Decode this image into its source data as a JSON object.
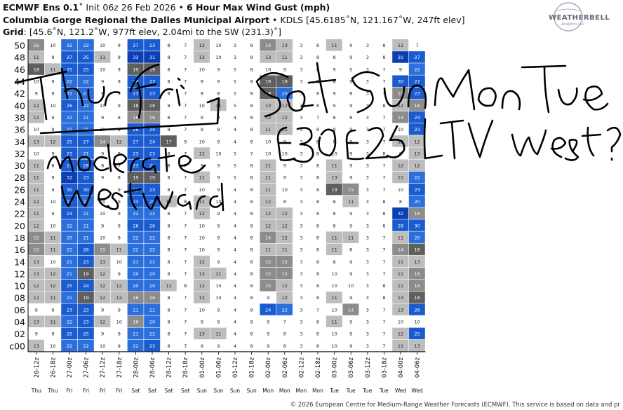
{
  "header": {
    "line1_model": "ECMWF Ens 0.1",
    "line1_init": "˚ Init 06z 26 Feb 2026",
    "line1_sep": " • ",
    "line1_field": "6 Hour Max Wind Gust (mph)",
    "line2_site": "Columbia Gorge Regional the Dalles Municipal Airport",
    "line2_rest": " • KDLS [45.6185˚N, 121.167˚W, 247ft elev]",
    "line3_label": "Grid",
    "line3_rest": ": [45.6˚N, 121.2˚W, 977ft elev, 2.04mi to the SW (231.3)˚]"
  },
  "logo": {
    "text": "WEATHERBELL",
    "subtext": "Analytics LLC"
  },
  "footer": "© 2026 European Centre for Medium-Range Weather Forecasts (ECMWF). This service is based on data and pr",
  "annotations": [
    "Thur",
    "Fri",
    "Sat",
    "Sun",
    "Mon",
    "Tue",
    "E30",
    "E25",
    "LTV",
    "west?",
    "moderate",
    "westward"
  ],
  "colors": {
    "c_le10": "#ffffff",
    "c_11_13": "#bdbdbd",
    "c_14_16": "#8c8c8c",
    "c_17_19": "#5f5f5f",
    "c_20_22": "#2a6fdb",
    "c_23_30": "#1a5cd0",
    "c_31_plus": "#0b3fb3",
    "c_green": "#2ea02e"
  },
  "chart_data": {
    "type": "heatmap",
    "ylabel": "",
    "y": [
      "50",
      "48",
      "46",
      "44",
      "42",
      "40",
      "38",
      "36",
      "34",
      "32",
      "30",
      "28",
      "26",
      "24",
      "22",
      "20",
      "18",
      "16",
      "14",
      "12",
      "10",
      "08",
      "06",
      "04",
      "02",
      "c00"
    ],
    "x": [
      "26-12z",
      "26-18z",
      "27-00z",
      "27-06z",
      "27-12z",
      "27-18z",
      "28-00z",
      "28-06z",
      "28-12z",
      "28-18z",
      "01-00z",
      "01-06z",
      "01-12z",
      "01-18z",
      "02-00z",
      "02-06z",
      "02-12z",
      "02-18z",
      "03-00z",
      "03-06z",
      "03-12z",
      "03-18z",
      "04-00z",
      "04-06z"
    ],
    "x_days": [
      "Thu",
      "Thu",
      "Fri",
      "Fri",
      "Fri",
      "Fri",
      "Sat",
      "Sat",
      "Sat",
      "Sat",
      "Sun",
      "Sun",
      "Sun",
      "Sun",
      "Mon",
      "Mon",
      "Mon",
      "Mon",
      "Tue",
      "Tue",
      "Tue",
      "Tue",
      "Wed",
      "Wed"
    ],
    "values": [
      [
        16,
        10,
        22,
        22,
        10,
        9,
        27,
        23,
        8,
        7,
        12,
        10,
        3,
        8,
        14,
        13,
        3,
        8,
        11,
        9,
        3,
        8,
        11,
        7
      ],
      [
        11,
        9,
        27,
        25,
        11,
        9,
        33,
        31,
        8,
        7,
        13,
        10,
        3,
        8,
        13,
        11,
        3,
        8,
        8,
        9,
        3,
        8,
        31,
        27
      ],
      [
        18,
        11,
        25,
        25,
        10,
        9,
        19,
        19,
        8,
        7,
        10,
        9,
        5,
        8,
        10,
        9,
        3,
        8,
        9,
        5,
        3,
        7,
        9,
        22
      ],
      [
        10,
        9,
        22,
        22,
        9,
        9,
        24,
        23,
        8,
        7,
        9,
        9,
        5,
        8,
        19,
        19,
        3,
        8,
        8,
        9,
        3,
        7,
        30,
        27
      ],
      [
        9,
        9,
        21,
        21,
        9,
        9,
        23,
        23,
        8,
        7,
        9,
        8,
        5,
        8,
        19,
        20,
        3,
        8,
        9,
        8,
        3,
        7,
        15,
        23
      ],
      [
        12,
        10,
        26,
        22,
        10,
        9,
        18,
        18,
        8,
        7,
        10,
        11,
        5,
        8,
        13,
        12,
        3,
        8,
        9,
        9,
        3,
        8,
        12,
        16
      ],
      [
        12,
        9,
        22,
        21,
        9,
        8,
        16,
        16,
        8,
        7,
        9,
        9,
        4,
        8,
        12,
        12,
        3,
        7,
        8,
        8,
        3,
        7,
        14,
        23
      ],
      [
        10,
        9,
        21,
        21,
        10,
        9,
        26,
        24,
        8,
        7,
        9,
        9,
        4,
        8,
        11,
        11,
        3,
        8,
        9,
        9,
        3,
        7,
        10,
        23
      ],
      [
        13,
        12,
        25,
        27,
        14,
        12,
        27,
        24,
        17,
        9,
        10,
        9,
        4,
        8,
        10,
        9,
        3,
        8,
        8,
        9,
        3,
        7,
        13,
        12
      ],
      [
        10,
        9,
        23,
        21,
        9,
        9,
        23,
        23,
        8,
        7,
        12,
        10,
        5,
        7,
        10,
        10,
        3,
        8,
        10,
        9,
        3,
        8,
        9,
        13
      ],
      [
        11,
        8,
        27,
        28,
        8,
        7,
        23,
        23,
        8,
        7,
        9,
        9,
        5,
        8,
        11,
        9,
        3,
        8,
        11,
        9,
        3,
        7,
        12,
        12
      ],
      [
        11,
        9,
        32,
        23,
        9,
        8,
        19,
        19,
        8,
        7,
        11,
        9,
        5,
        8,
        11,
        9,
        3,
        8,
        13,
        9,
        3,
        7,
        11,
        22
      ],
      [
        11,
        9,
        30,
        30,
        9,
        9,
        23,
        23,
        8,
        7,
        10,
        9,
        4,
        8,
        11,
        10,
        3,
        8,
        19,
        15,
        3,
        7,
        10,
        23
      ],
      [
        12,
        10,
        25,
        22,
        10,
        9,
        23,
        29,
        12,
        8,
        12,
        10,
        4,
        8,
        12,
        8,
        3,
        8,
        8,
        11,
        3,
        8,
        8,
        20
      ],
      [
        11,
        9,
        24,
        21,
        10,
        9,
        22,
        22,
        8,
        7,
        12,
        9,
        4,
        8,
        12,
        12,
        3,
        8,
        8,
        9,
        3,
        8,
        32,
        16
      ],
      [
        12,
        10,
        22,
        21,
        9,
        9,
        26,
        26,
        8,
        7,
        10,
        9,
        4,
        8,
        12,
        12,
        3,
        8,
        8,
        9,
        3,
        8,
        28,
        30
      ],
      [
        15,
        11,
        20,
        21,
        10,
        9,
        22,
        22,
        8,
        7,
        10,
        9,
        4,
        8,
        14,
        12,
        3,
        8,
        11,
        11,
        3,
        7,
        11,
        20
      ],
      [
        15,
        11,
        22,
        26,
        15,
        11,
        22,
        22,
        8,
        7,
        10,
        9,
        4,
        8,
        11,
        11,
        3,
        8,
        11,
        8,
        3,
        7,
        14,
        18
      ],
      [
        13,
        10,
        21,
        23,
        13,
        10,
        21,
        21,
        8,
        7,
        12,
        9,
        4,
        8,
        15,
        15,
        3,
        8,
        8,
        9,
        3,
        7,
        11,
        13
      ],
      [
        13,
        12,
        21,
        19,
        12,
        9,
        20,
        20,
        8,
        7,
        13,
        11,
        4,
        8,
        15,
        15,
        3,
        8,
        10,
        9,
        3,
        7,
        11,
        16
      ],
      [
        12,
        12,
        25,
        24,
        12,
        12,
        20,
        20,
        12,
        8,
        12,
        10,
        4,
        8,
        15,
        12,
        3,
        8,
        10,
        10,
        3,
        8,
        11,
        16
      ],
      [
        12,
        11,
        21,
        19,
        12,
        12,
        16,
        16,
        8,
        7,
        12,
        10,
        4,
        8,
        9,
        12,
        3,
        8,
        11,
        9,
        3,
        8,
        13,
        18
      ],
      [
        9,
        9,
        23,
        23,
        9,
        9,
        21,
        21,
        8,
        7,
        10,
        9,
        4,
        8,
        24,
        22,
        3,
        7,
        10,
        14,
        3,
        7,
        13,
        26
      ],
      [
        13,
        11,
        22,
        23,
        12,
        10,
        16,
        20,
        8,
        7,
        9,
        9,
        4,
        8,
        9,
        7,
        3,
        8,
        11,
        9,
        3,
        7,
        10,
        10
      ],
      [
        9,
        9,
        25,
        25,
        9,
        9,
        21,
        22,
        8,
        7,
        13,
        11,
        4,
        8,
        9,
        8,
        3,
        8,
        10,
        9,
        3,
        7,
        12,
        25
      ],
      [
        13,
        10,
        22,
        22,
        10,
        9,
        22,
        23,
        8,
        7,
        9,
        9,
        4,
        8,
        9,
        8,
        3,
        8,
        10,
        9,
        3,
        7,
        11,
        13
      ]
    ],
    "color_scale": "grey 11-19, blue 20+"
  }
}
